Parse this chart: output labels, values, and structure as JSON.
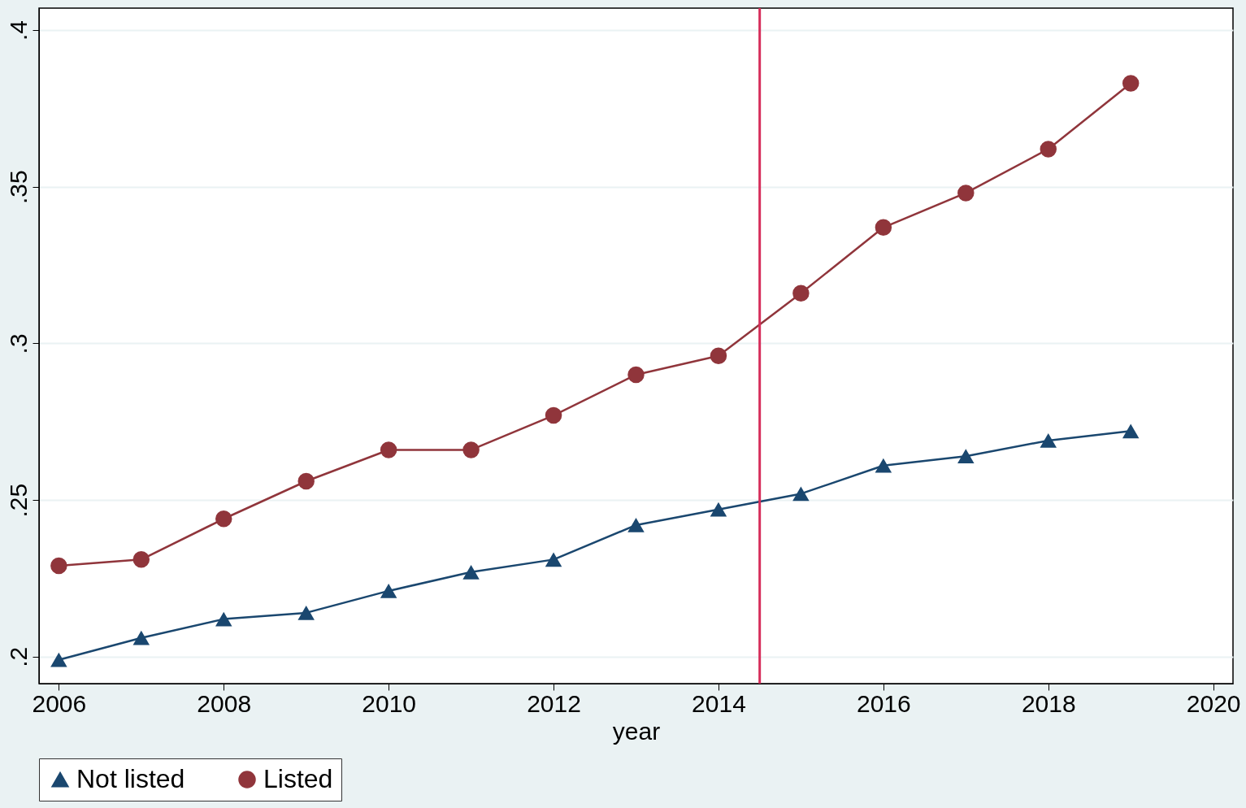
{
  "chart_data": {
    "type": "line",
    "xlabel": "year",
    "x": [
      2006,
      2007,
      2008,
      2009,
      2010,
      2011,
      2012,
      2013,
      2014,
      2015,
      2016,
      2017,
      2018,
      2019
    ],
    "series": [
      {
        "name": "Not listed",
        "color": "#1a476f",
        "marker": "triangle",
        "values": [
          0.199,
          0.206,
          0.212,
          0.214,
          0.221,
          0.227,
          0.231,
          0.242,
          0.247,
          0.252,
          0.261,
          0.264,
          0.269,
          0.272
        ]
      },
      {
        "name": "Listed",
        "color": "#90353b",
        "marker": "circle",
        "values": [
          0.229,
          0.231,
          0.244,
          0.256,
          0.266,
          0.266,
          0.277,
          0.29,
          0.296,
          0.316,
          0.337,
          0.348,
          0.362,
          0.383
        ]
      }
    ],
    "xlim": [
      2005.76,
      2020.24
    ],
    "xticks": [
      2006,
      2008,
      2010,
      2012,
      2014,
      2016,
      2018,
      2020
    ],
    "ylim": [
      0.1914,
      0.407
    ],
    "yticks": [
      {
        "value": 0.2,
        "label": ".2"
      },
      {
        "value": 0.25,
        "label": ".25"
      },
      {
        "value": 0.3,
        "label": ".3"
      },
      {
        "value": 0.35,
        "label": ".35"
      },
      {
        "value": 0.4,
        "label": ".4"
      }
    ],
    "ref_lines": [
      {
        "axis": "x",
        "value": 2014.5,
        "color": "#d62d5a"
      }
    ],
    "grid": "y",
    "legend": "bottom",
    "line_style": "solid"
  }
}
